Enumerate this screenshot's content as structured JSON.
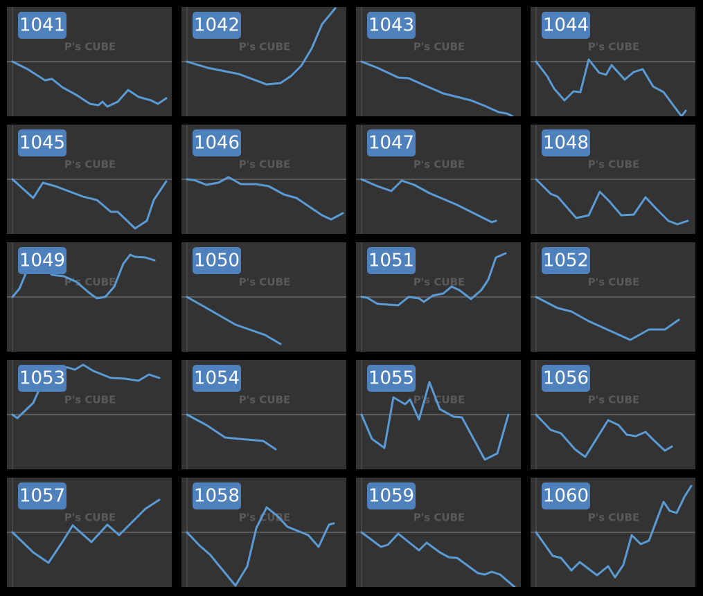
{
  "watermark": "P's CUBE",
  "chart_data": [
    {
      "type": "line",
      "title": "1041",
      "color": "#5b9bd5",
      "xlim": [
        0,
        238
      ],
      "ylim": [
        -79,
        79
      ],
      "yticks": [
        0
      ],
      "grid": true,
      "x": [
        8,
        30,
        55,
        65,
        80,
        100,
        120,
        132,
        138,
        145,
        160,
        175,
        190,
        208,
        218,
        230
      ],
      "values": [
        0,
        -11,
        -27,
        -25,
        -37,
        -48,
        -61,
        -63,
        -58,
        -65,
        -58,
        -41,
        -51,
        -56,
        -61,
        -53
      ]
    },
    {
      "type": "line",
      "title": "1042",
      "color": "#5b9bd5",
      "xlim": [
        0,
        238
      ],
      "ylim": [
        -79,
        79
      ],
      "yticks": [
        0
      ],
      "grid": true,
      "x": [
        8,
        38,
        83,
        123,
        143,
        158,
        173,
        188,
        203,
        222
      ],
      "values": [
        0,
        -9,
        -18,
        -33,
        -31,
        -21,
        -6,
        19,
        54,
        77
      ]
    },
    {
      "type": "line",
      "title": "1043",
      "color": "#5b9bd5",
      "xlim": [
        0,
        238
      ],
      "ylim": [
        -79,
        79
      ],
      "yticks": [
        0
      ],
      "grid": true,
      "x": [
        8,
        31,
        61,
        76,
        96,
        126,
        166,
        186,
        206,
        218,
        226
      ],
      "values": [
        0,
        -9,
        -23,
        -24,
        -33,
        -46,
        -56,
        -64,
        -73,
        -75,
        -79
      ]
    },
    {
      "type": "line",
      "title": "1044",
      "color": "#5b9bd5",
      "xlim": [
        0,
        238
      ],
      "ylim": [
        -79,
        79
      ],
      "yticks": [
        0
      ],
      "grid": true,
      "x": [
        8,
        24,
        34,
        49,
        62,
        72,
        84,
        99,
        109,
        117,
        136,
        149,
        162,
        177,
        192,
        218,
        224
      ],
      "values": [
        0,
        -21,
        -39,
        -56,
        -43,
        -44,
        3,
        -16,
        -19,
        -5,
        -26,
        -15,
        -11,
        -36,
        -44,
        -79,
        -71
      ]
    },
    {
      "type": "line",
      "title": "1045",
      "color": "#5b9bd5",
      "xlim": [
        0,
        238
      ],
      "ylim": [
        -79,
        79
      ],
      "yticks": [
        0
      ],
      "grid": true,
      "x": [
        8,
        38,
        52,
        70,
        110,
        130,
        150,
        160,
        185,
        202,
        212,
        230
      ],
      "values": [
        0,
        -27,
        -5,
        -10,
        -25,
        -30,
        -47,
        -47,
        -71,
        -60,
        -30,
        -3
      ]
    },
    {
      "type": "line",
      "title": "1046",
      "color": "#5b9bd5",
      "xlim": [
        0,
        238
      ],
      "ylim": [
        -79,
        79
      ],
      "yticks": [
        0
      ],
      "grid": true,
      "x": [
        8,
        18,
        36,
        53,
        68,
        86,
        108,
        126,
        148,
        166,
        203,
        216,
        233
      ],
      "values": [
        0,
        -1,
        -8,
        -5,
        3,
        -7,
        -7,
        -10,
        -22,
        -27,
        -52,
        -58,
        -49
      ]
    },
    {
      "type": "line",
      "title": "1047",
      "color": "#5b9bd5",
      "xlim": [
        0,
        238
      ],
      "ylim": [
        -79,
        79
      ],
      "yticks": [
        0
      ],
      "grid": true,
      "x": [
        8,
        31,
        51,
        66,
        84,
        106,
        146,
        196,
        202
      ],
      "values": [
        0,
        -10,
        -17,
        -2,
        -8,
        -20,
        -37,
        -62,
        -60
      ]
    },
    {
      "type": "line",
      "title": "1048",
      "color": "#5b9bd5",
      "xlim": [
        0,
        238
      ],
      "ylim": [
        -79,
        79
      ],
      "yticks": [
        0
      ],
      "grid": true,
      "x": [
        8,
        29,
        39,
        66,
        84,
        100,
        114,
        131,
        149,
        166,
        182,
        199,
        212,
        227
      ],
      "values": [
        0,
        -21,
        -25,
        -56,
        -52,
        -18,
        -32,
        -52,
        -51,
        -26,
        -43,
        -60,
        -65,
        -60
      ]
    },
    {
      "type": "line",
      "title": "1049",
      "color": "#5b9bd5",
      "xlim": [
        0,
        238
      ],
      "ylim": [
        -79,
        79
      ],
      "yticks": [
        0
      ],
      "grid": true,
      "x": [
        8,
        18,
        32,
        52,
        65,
        82,
        100,
        120,
        130,
        142,
        155,
        168,
        178,
        185,
        200,
        213
      ],
      "values": [
        0,
        12,
        45,
        45,
        32,
        30,
        22,
        5,
        -2,
        0,
        15,
        48,
        61,
        58,
        57,
        53
      ]
    },
    {
      "type": "line",
      "title": "1050",
      "color": "#5b9bd5",
      "xlim": [
        0,
        238
      ],
      "ylim": [
        -79,
        79
      ],
      "yticks": [
        0
      ],
      "grid": true,
      "x": [
        8,
        38,
        78,
        121,
        143
      ],
      "values": [
        0,
        -17,
        -40,
        -55,
        -68
      ]
    },
    {
      "type": "line",
      "title": "1051",
      "color": "#5b9bd5",
      "xlim": [
        0,
        238
      ],
      "ylim": [
        -79,
        79
      ],
      "yticks": [
        0
      ],
      "grid": true,
      "x": [
        8,
        16,
        31,
        61,
        76,
        91,
        98,
        111,
        126,
        138,
        149,
        166,
        181,
        191,
        202,
        216
      ],
      "values": [
        0,
        -1,
        -10,
        -12,
        0,
        -2,
        -7,
        2,
        5,
        15,
        10,
        -3,
        10,
        25,
        57,
        63
      ]
    },
    {
      "type": "line",
      "title": "1052",
      "color": "#5b9bd5",
      "xlim": [
        0,
        238
      ],
      "ylim": [
        -79,
        79
      ],
      "yticks": [
        0
      ],
      "grid": true,
      "x": [
        8,
        39,
        59,
        84,
        144,
        171,
        194,
        214
      ],
      "values": [
        0,
        -16,
        -21,
        -35,
        -62,
        -47,
        -47,
        -33
      ]
    },
    {
      "type": "line",
      "title": "1053",
      "color": "#5b9bd5",
      "xlim": [
        0,
        238
      ],
      "ylim": [
        -79,
        79
      ],
      "yticks": [
        0
      ],
      "grid": true,
      "x": [
        8,
        15,
        38,
        55,
        65,
        75,
        88,
        98,
        110,
        125,
        150,
        170,
        190,
        205,
        220
      ],
      "values": [
        0,
        -5,
        17,
        55,
        68,
        70,
        68,
        65,
        72,
        63,
        53,
        52,
        49,
        58,
        53
      ]
    },
    {
      "type": "line",
      "title": "1054",
      "color": "#5b9bd5",
      "xlim": [
        0,
        238
      ],
      "ylim": [
        -79,
        79
      ],
      "yticks": [
        0
      ],
      "grid": true,
      "x": [
        8,
        36,
        63,
        83,
        118,
        136
      ],
      "values": [
        0,
        -15,
        -33,
        -35,
        -38,
        -50
      ]
    },
    {
      "type": "line",
      "title": "1055",
      "color": "#5b9bd5",
      "xlim": [
        0,
        238
      ],
      "ylim": [
        -79,
        79
      ],
      "yticks": [
        0
      ],
      "grid": true,
      "x": [
        8,
        23,
        41,
        54,
        71,
        78,
        91,
        106,
        121,
        141,
        153,
        186,
        204,
        220
      ],
      "values": [
        0,
        -35,
        -48,
        25,
        15,
        22,
        -7,
        47,
        8,
        -3,
        -4,
        -65,
        -56,
        0
      ]
    },
    {
      "type": "line",
      "title": "1056",
      "color": "#5b9bd5",
      "xlim": [
        0,
        238
      ],
      "ylim": [
        -79,
        79
      ],
      "yticks": [
        0
      ],
      "grid": true,
      "x": [
        8,
        29,
        44,
        64,
        79,
        112,
        127,
        139,
        152,
        166,
        179,
        194,
        204
      ],
      "values": [
        0,
        -22,
        -27,
        -50,
        -61,
        -8,
        -15,
        -29,
        -31,
        -25,
        -38,
        -52,
        -46
      ]
    },
    {
      "type": "line",
      "title": "1057",
      "color": "#5b9bd5",
      "xlim": [
        0,
        238
      ],
      "ylim": [
        -79,
        79
      ],
      "yticks": [
        0
      ],
      "grid": true,
      "x": [
        8,
        38,
        60,
        80,
        95,
        122,
        145,
        162,
        185,
        200,
        220
      ],
      "values": [
        0,
        -29,
        -44,
        -14,
        10,
        -14,
        11,
        -4,
        19,
        34,
        47
      ]
    },
    {
      "type": "line",
      "title": "1058",
      "color": "#5b9bd5",
      "xlim": [
        0,
        238
      ],
      "ylim": [
        -79,
        79
      ],
      "yticks": [
        0
      ],
      "grid": true,
      "x": [
        8,
        26,
        41,
        78,
        95,
        108,
        123,
        138,
        153,
        183,
        198,
        213,
        220
      ],
      "values": [
        0,
        -19,
        -32,
        -77,
        -49,
        6,
        36,
        24,
        8,
        -4,
        -21,
        11,
        13
      ]
    },
    {
      "type": "line",
      "title": "1059",
      "color": "#5b9bd5",
      "xlim": [
        0,
        238
      ],
      "ylim": [
        -79,
        79
      ],
      "yticks": [
        0
      ],
      "grid": true,
      "x": [
        8,
        36,
        46,
        61,
        91,
        102,
        121,
        134,
        146,
        176,
        186,
        196,
        208,
        229
      ],
      "values": [
        0,
        -21,
        -18,
        -2,
        -26,
        -15,
        -29,
        -36,
        -37,
        -59,
        -61,
        -57,
        -61,
        -79
      ]
    },
    {
      "type": "line",
      "title": "1060",
      "color": "#5b9bd5",
      "xlim": [
        0,
        238
      ],
      "ylim": [
        -79,
        79
      ],
      "yticks": [
        0
      ],
      "grid": true,
      "x": [
        8,
        32,
        44,
        59,
        71,
        96,
        112,
        122,
        134,
        146,
        159,
        171,
        192,
        201,
        211,
        222,
        232
      ],
      "values": [
        0,
        -34,
        -37,
        -55,
        -43,
        -62,
        -49,
        -65,
        -47,
        -4,
        -17,
        -12,
        44,
        31,
        28,
        51,
        67
      ]
    }
  ]
}
